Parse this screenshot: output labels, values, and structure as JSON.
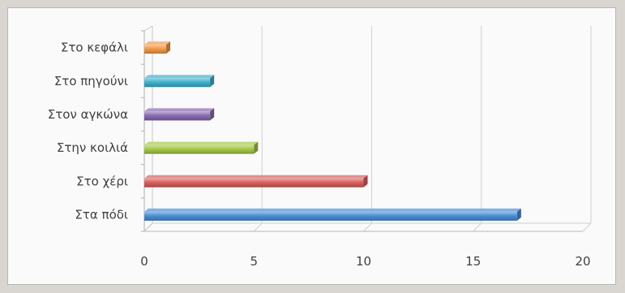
{
  "chart_data": {
    "type": "bar",
    "orientation": "horizontal",
    "categories": [
      "Στα πόδι",
      "Στο χέρι",
      "Στην κοιλιά",
      "Στον αγκώνα",
      "Στο πηγούνι",
      "Στο κεφάλι"
    ],
    "values": [
      17,
      10,
      5,
      3,
      3,
      1
    ],
    "colors": [
      "#4a8fd6",
      "#d9605d",
      "#a7c84b",
      "#8a6bb3",
      "#3fb2cd",
      "#f39b4a"
    ],
    "xlim": [
      0,
      20
    ],
    "x_ticks": [
      0,
      5,
      10,
      15,
      20
    ],
    "grid": true,
    "legend": false,
    "title": "",
    "xlabel": "",
    "ylabel": ""
  }
}
